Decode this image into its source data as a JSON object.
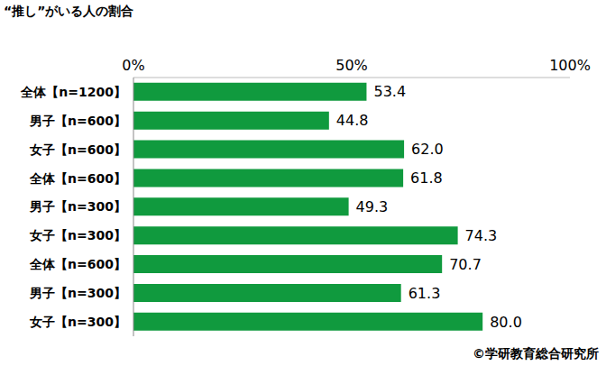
{
  "chart_data": {
    "type": "bar",
    "title": "“推し”がいる人の割合",
    "orientation": "horizontal",
    "categories": [
      "全体【n=1200】",
      "男子【n=600】",
      "女子【n=600】",
      "全体【n=600】",
      "男子【n=300】",
      "女子【n=300】",
      "全体【n=600】",
      "男子【n=300】",
      "女子【n=300】"
    ],
    "values": [
      53.4,
      44.8,
      62.0,
      61.8,
      49.3,
      74.3,
      70.7,
      61.3,
      80.0
    ],
    "value_labels": [
      "53.4",
      "44.8",
      "62.0",
      "61.8",
      "49.3",
      "74.3",
      "70.7",
      "61.3",
      "80.0"
    ],
    "color": "#109a3e",
    "xlim": [
      0,
      100
    ],
    "xticks": [
      {
        "value": 0,
        "label": "0%"
      },
      {
        "value": 50,
        "label": "50%"
      },
      {
        "value": 100,
        "label": "100%"
      }
    ],
    "data_labels": true,
    "grid": false,
    "annotations": [
      "©学研教育総合研究所"
    ]
  }
}
